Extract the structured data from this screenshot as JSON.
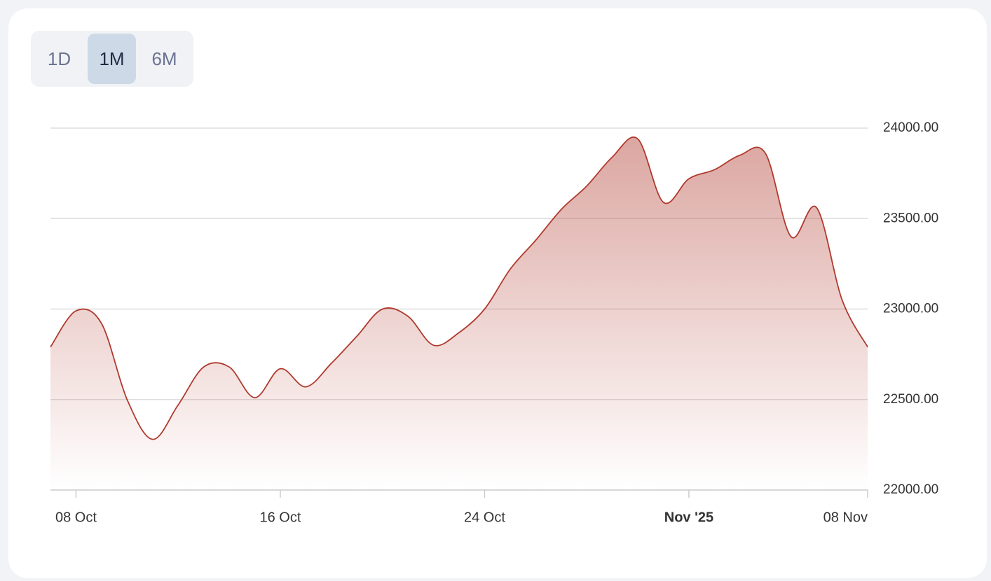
{
  "buttons": [
    "1D",
    "1M",
    "6M"
  ],
  "active_button": 1,
  "chart_data": {
    "type": "area",
    "x": [
      "2025-10-07",
      "2025-10-08",
      "2025-10-09",
      "2025-10-10",
      "2025-10-11",
      "2025-10-12",
      "2025-10-13",
      "2025-10-14",
      "2025-10-15",
      "2025-10-16",
      "2025-10-17",
      "2025-10-18",
      "2025-10-19",
      "2025-10-20",
      "2025-10-21",
      "2025-10-22",
      "2025-10-23",
      "2025-10-24",
      "2025-10-25",
      "2025-10-26",
      "2025-10-27",
      "2025-10-28",
      "2025-10-29",
      "2025-10-30",
      "2025-10-31",
      "2025-11-01",
      "2025-11-02",
      "2025-11-03",
      "2025-11-04",
      "2025-11-05",
      "2025-11-06",
      "2025-11-07",
      "2025-11-08"
    ],
    "values": [
      22790,
      22990,
      22920,
      22500,
      22280,
      22470,
      22680,
      22680,
      22510,
      22670,
      22570,
      22700,
      22850,
      23000,
      22960,
      22800,
      22870,
      23000,
      23220,
      23380,
      23550,
      23680,
      23840,
      23940,
      23590,
      23720,
      23770,
      23850,
      23860,
      23400,
      23560,
      23050,
      22790
    ],
    "color": "#b03a2e",
    "xlim": [
      "2025-10-07",
      "2025-11-08"
    ],
    "xticks": [
      {
        "value": "2025-10-08",
        "label": "08 Oct"
      },
      {
        "value": "2025-10-16",
        "label": "16 Oct"
      },
      {
        "value": "2025-10-24",
        "label": "24 Oct"
      },
      {
        "value": "2025-11-01",
        "label": "Nov '25",
        "bold": true
      },
      {
        "value": "2025-11-08",
        "label": "08 Nov"
      }
    ],
    "ylim": [
      22000,
      24000
    ],
    "yticks": [
      {
        "value": 22000,
        "label": "22000.00"
      },
      {
        "value": 22500,
        "label": "22500.00"
      },
      {
        "value": 23000,
        "label": "23000.00"
      },
      {
        "value": 23500,
        "label": "23500.00"
      },
      {
        "value": 24000,
        "label": "24000.00"
      }
    ],
    "grid": true
  }
}
